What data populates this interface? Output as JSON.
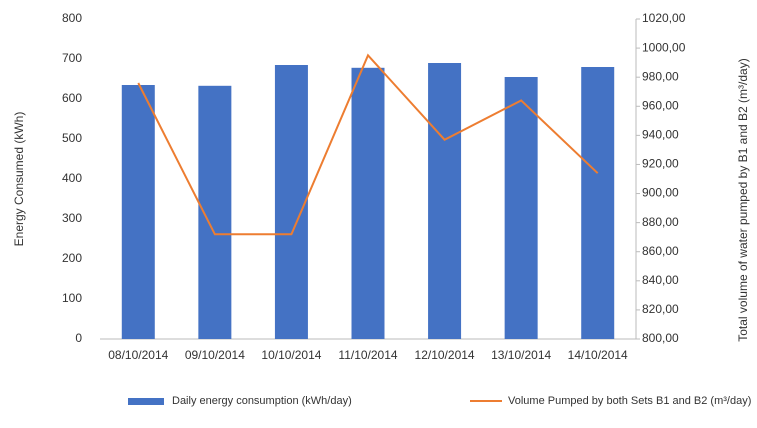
{
  "chart_data": {
    "type": "bar-line",
    "categories": [
      "08/10/2014",
      "09/10/2014",
      "10/10/2014",
      "11/10/2014",
      "12/10/2014",
      "13/10/2014",
      "14/10/2014"
    ],
    "series": [
      {
        "name": "Daily energy consumption (kWh/day)",
        "type": "bar",
        "color": "#4472c4",
        "values": [
          635,
          633,
          685,
          678,
          690,
          655,
          680
        ]
      },
      {
        "name": "Volume Pumped by both Sets B1 and B2 (m³/day)",
        "type": "line",
        "axis": "y2",
        "color": "#ed7d31",
        "values": [
          976,
          872,
          872,
          995,
          937,
          964,
          914
        ]
      }
    ],
    "ylabel": "Energy Consumed (kWh)",
    "y2label": "Total volume of water pumped by B1 and B2 (m³/day)",
    "ylim": [
      0,
      800
    ],
    "yticks": [
      0,
      100,
      200,
      300,
      400,
      500,
      600,
      700,
      800
    ],
    "y2lim": [
      800,
      1020
    ],
    "y2ticks": [
      {
        "value": 800,
        "label": "800,00"
      },
      {
        "value": 820,
        "label": "820,00"
      },
      {
        "value": 840,
        "label": "840,00"
      },
      {
        "value": 860,
        "label": "860,00"
      },
      {
        "value": 880,
        "label": "880,00"
      },
      {
        "value": 900,
        "label": "900,00"
      },
      {
        "value": 920,
        "label": "920,00"
      },
      {
        "value": 940,
        "label": "940,00"
      },
      {
        "value": 960,
        "label": "960,00"
      },
      {
        "value": 980,
        "label": "980,00"
      },
      {
        "value": 1000,
        "label": "1000,00"
      },
      {
        "value": 1020,
        "label": "1020,00"
      }
    ],
    "grid": false
  }
}
